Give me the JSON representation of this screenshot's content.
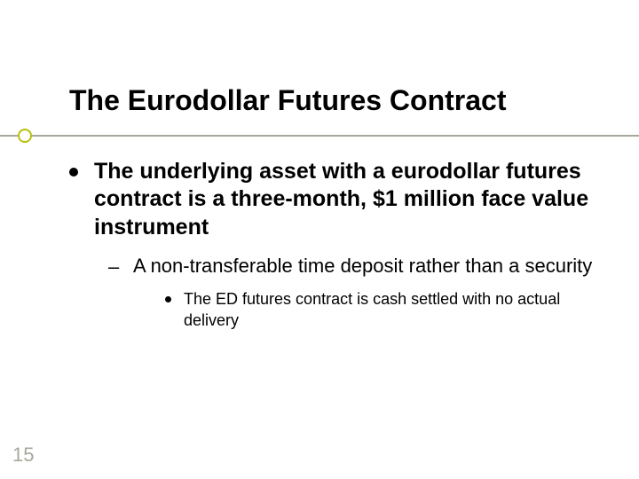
{
  "slide": {
    "title": "The Eurodollar Futures Contract",
    "page_number": "15",
    "background_color": "#ffffff",
    "text_color": "#000000",
    "accent_line_color": "#a7a89a",
    "accent_circle_border": "#b7bf10",
    "title_fontsize": 32,
    "lvl1_fontsize": 25,
    "lvl2_fontsize": 22,
    "lvl3_fontsize": 18,
    "bullets": {
      "lvl1": {
        "text": "The underlying asset with a eurodollar futures contract is a three-month, $1 million face value instrument"
      },
      "lvl2": {
        "text": "A non-transferable time deposit rather than a security"
      },
      "lvl3": {
        "text": "The ED futures contract is cash settled with no actual delivery"
      }
    }
  }
}
